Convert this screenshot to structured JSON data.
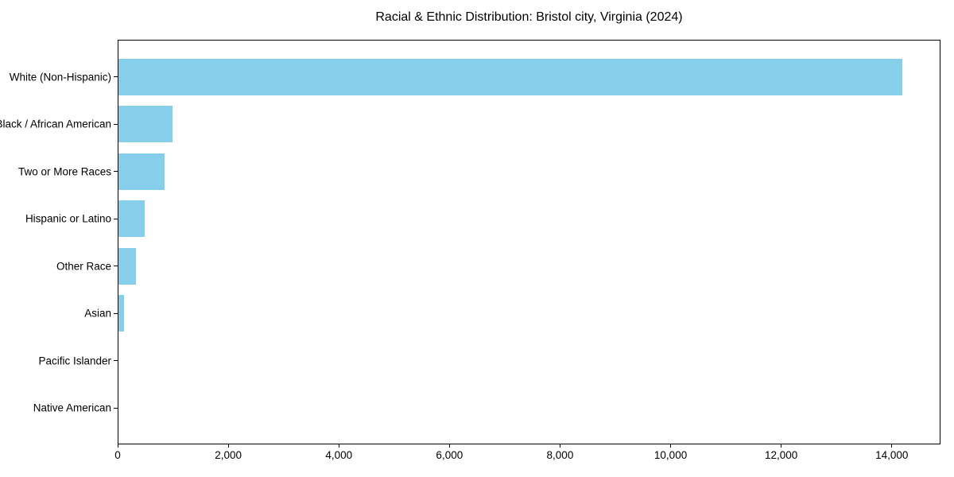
{
  "chart_data": {
    "type": "bar",
    "orientation": "horizontal",
    "title": "Racial & Ethnic Distribution: Bristol city, Virginia (2024)",
    "categories": [
      "White (Non-Hispanic)",
      "Black / African American",
      "Two or More Races",
      "Hispanic or Latino",
      "Other Race",
      "Asian",
      "Pacific Islander",
      "Native American"
    ],
    "values": [
      14200,
      985,
      835,
      480,
      320,
      100,
      0,
      0
    ],
    "xlabel": "",
    "ylabel": "",
    "xlim": [
      0,
      14880
    ],
    "x_ticks": [
      0,
      2000,
      4000,
      6000,
      8000,
      10000,
      12000,
      14000
    ],
    "x_tick_labels": [
      "0",
      "2,000",
      "4,000",
      "6,000",
      "8,000",
      "10,000",
      "12,000",
      "14,000"
    ],
    "bar_color": "#87CEEB",
    "axis_color": "#000000",
    "text_color": "#000000",
    "background_color": "#FFFFFF",
    "grid": false
  }
}
